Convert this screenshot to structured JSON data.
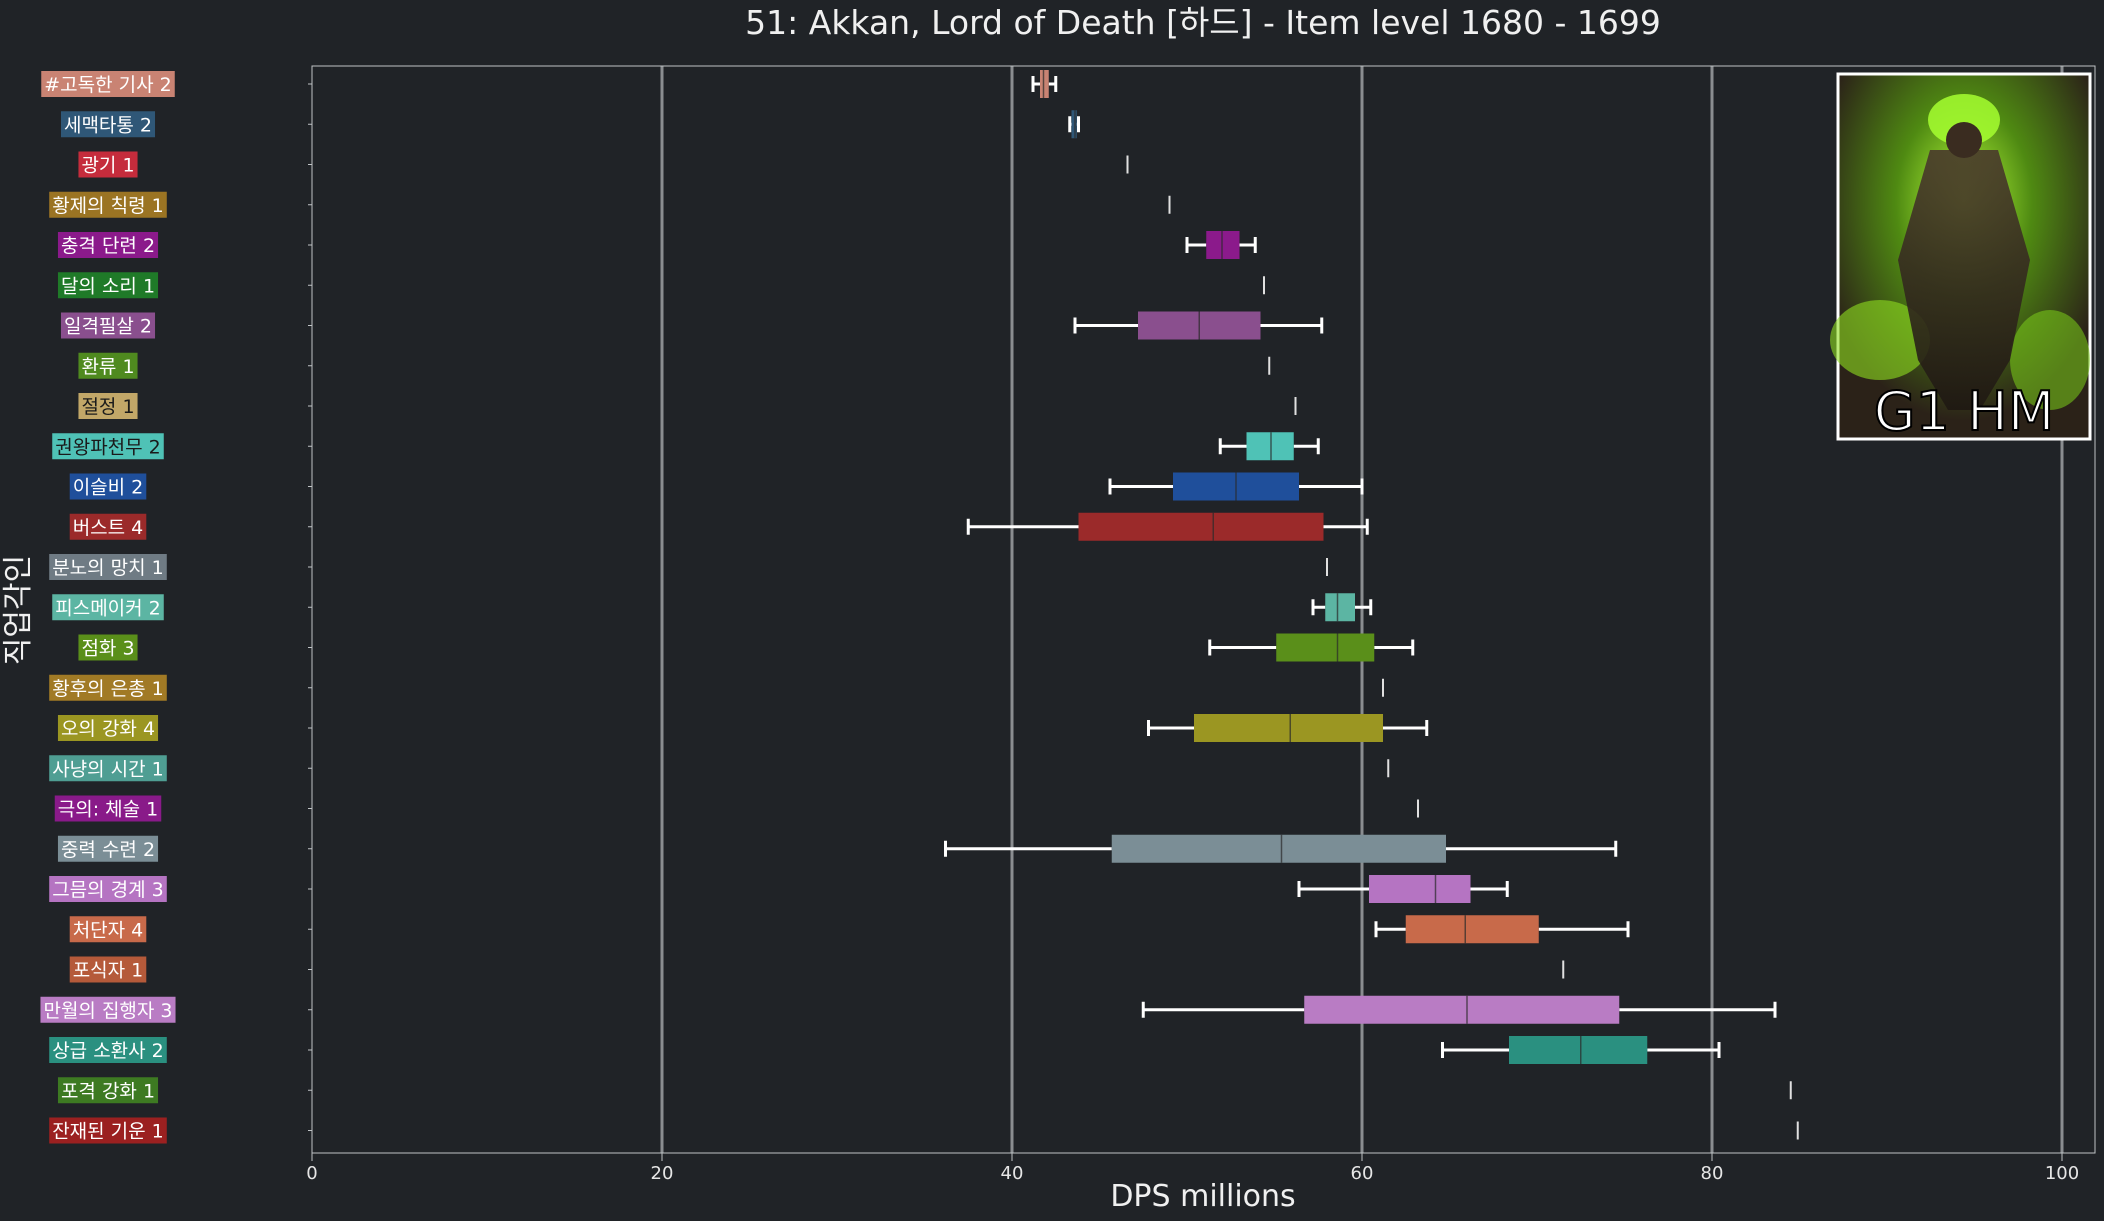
{
  "chart_data": {
    "type": "box",
    "title": "51: Akkan, Lord of Death [하드] - Item level 1680 - 1699",
    "xlabel": "DPS millions",
    "ylabel": "직업각인",
    "xlim": [
      0,
      102
    ],
    "xticks": [
      0,
      20,
      40,
      60,
      80,
      100
    ],
    "grid": "vertical",
    "badge": "G1 HM",
    "series": [
      {
        "label": "#고독한 기사 2",
        "color": "#c98373",
        "min": 41.2,
        "q1": 41.6,
        "median": 41.8,
        "q3": 42.1,
        "max": 42.5
      },
      {
        "label": "세맥타통 2",
        "color": "#2f5777",
        "min": 43.3,
        "q1": 43.4,
        "median": 43.6,
        "q3": 43.7,
        "max": 43.8
      },
      {
        "label": "광기 1",
        "color": "#c52c3c",
        "min": 46.6,
        "q1": 46.6,
        "median": 46.6,
        "q3": 46.6,
        "max": 46.6
      },
      {
        "label": "황제의 칙령 1",
        "color": "#9b7423",
        "min": 49.0,
        "q1": 49.0,
        "median": 49.0,
        "q3": 49.0,
        "max": 49.0
      },
      {
        "label": "충격 단련 2",
        "color": "#8b1a8b",
        "min": 50.0,
        "q1": 51.1,
        "median": 52.0,
        "q3": 53.0,
        "max": 53.9
      },
      {
        "label": "달의 소리 1",
        "color": "#1f7a28",
        "min": 54.4,
        "q1": 54.4,
        "median": 54.4,
        "q3": 54.4,
        "max": 54.4
      },
      {
        "label": "일격필살 2",
        "color": "#8a4f8e",
        "min": 43.6,
        "q1": 47.2,
        "median": 50.7,
        "q3": 54.2,
        "max": 57.7
      },
      {
        "label": "환류 1",
        "color": "#4f8a1f",
        "min": 54.7,
        "q1": 54.7,
        "median": 54.7,
        "q3": 54.7,
        "max": 54.7
      },
      {
        "label": "절정 1",
        "color": "#c2a768",
        "min": 56.2,
        "q1": 56.2,
        "median": 56.2,
        "q3": 56.2,
        "max": 56.2
      },
      {
        "label": "권왕파천무 2",
        "color": "#4fc2b6",
        "min": 51.9,
        "q1": 53.4,
        "median": 54.8,
        "q3": 56.1,
        "max": 57.5
      },
      {
        "label": "이슬비 2",
        "color": "#1f4f9b",
        "min": 45.6,
        "q1": 49.2,
        "median": 52.8,
        "q3": 56.4,
        "max": 60.0
      },
      {
        "label": "버스트 4",
        "color": "#9b2a2a",
        "min": 37.5,
        "q1": 43.8,
        "median": 51.5,
        "q3": 57.8,
        "max": 60.3
      },
      {
        "label": "분노의 망치 1",
        "color": "#6f7b84",
        "min": 58.0,
        "q1": 58.0,
        "median": 58.0,
        "q3": 58.0,
        "max": 58.0
      },
      {
        "label": "피스메이커 2",
        "color": "#5cb5a3",
        "min": 57.2,
        "q1": 57.9,
        "median": 58.6,
        "q3": 59.6,
        "max": 60.5
      },
      {
        "label": "점화 3",
        "color": "#5a8f1a",
        "min": 51.3,
        "q1": 55.1,
        "median": 58.6,
        "q3": 60.7,
        "max": 62.9
      },
      {
        "label": "황후의 은총 1",
        "color": "#a17a25",
        "min": 61.2,
        "q1": 61.2,
        "median": 61.2,
        "q3": 61.2,
        "max": 61.2
      },
      {
        "label": "오의 강화 4",
        "color": "#9b9622",
        "min": 47.8,
        "q1": 50.4,
        "median": 55.9,
        "q3": 61.2,
        "max": 63.7
      },
      {
        "label": "사냥의 시간 1",
        "color": "#4f9e93",
        "min": 61.5,
        "q1": 61.5,
        "median": 61.5,
        "q3": 61.5,
        "max": 61.5
      },
      {
        "label": "극의: 체술 1",
        "color": "#891a89",
        "min": 63.2,
        "q1": 63.2,
        "median": 63.2,
        "q3": 63.2,
        "max": 63.2
      },
      {
        "label": "중력 수련 2",
        "color": "#7b8e96",
        "min": 36.2,
        "q1": 45.7,
        "median": 55.4,
        "q3": 64.8,
        "max": 74.5
      },
      {
        "label": "그믐의 경계 3",
        "color": "#b574c2",
        "min": 56.4,
        "q1": 60.4,
        "median": 64.2,
        "q3": 66.2,
        "max": 68.3
      },
      {
        "label": "처단자 4",
        "color": "#c86a4a",
        "min": 60.8,
        "q1": 62.5,
        "median": 65.9,
        "q3": 70.1,
        "max": 75.2
      },
      {
        "label": "포식자 1",
        "color": "#b55a3a",
        "min": 71.5,
        "q1": 71.5,
        "median": 71.5,
        "q3": 71.5,
        "max": 71.5
      },
      {
        "label": "만월의 집행자 3",
        "color": "#b97cc4",
        "min": 47.5,
        "q1": 56.7,
        "median": 66.0,
        "q3": 74.7,
        "max": 83.6
      },
      {
        "label": "상급 소환사 2",
        "color": "#2a9080",
        "min": 64.6,
        "q1": 68.4,
        "median": 72.5,
        "q3": 76.3,
        "max": 80.4
      },
      {
        "label": "포격 강화 1",
        "color": "#3d7a22",
        "min": 84.5,
        "q1": 84.5,
        "median": 84.5,
        "q3": 84.5,
        "max": 84.5
      },
      {
        "label": "잔재된 기운 1",
        "color": "#9b2020",
        "min": 84.9,
        "q1": 84.9,
        "median": 84.9,
        "q3": 84.9,
        "max": 84.9
      }
    ]
  }
}
